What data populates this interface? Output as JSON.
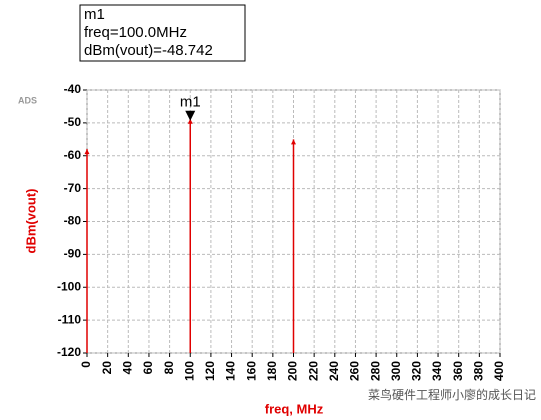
{
  "chart_data": {
    "type": "stem",
    "logo": "ADS",
    "x_label": "freq, MHz",
    "y_label": "dBm(vout)",
    "x": [
      0,
      100,
      200
    ],
    "values": [
      -58,
      -48.742,
      -55
    ],
    "color": "#e00000",
    "xlim": [
      0,
      400
    ],
    "xticks": [
      0,
      20,
      40,
      60,
      80,
      100,
      120,
      140,
      160,
      180,
      200,
      220,
      240,
      260,
      280,
      300,
      320,
      340,
      360,
      380,
      400
    ],
    "ylim": [
      -120,
      -40
    ],
    "yticks": [
      -40,
      -50,
      -60,
      -70,
      -80,
      -90,
      -100,
      -110,
      -120
    ],
    "grid": true,
    "marker": {
      "label": "m1",
      "lines": [
        "freq=100.0MHz",
        "dBm(vout)=-48.742"
      ],
      "x": 100,
      "y": -48.742
    },
    "watermark": "菜鸟硬件工程师小廖的成长日记"
  }
}
